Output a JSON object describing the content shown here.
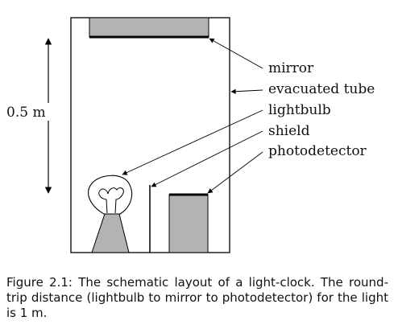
{
  "diagram": {
    "scale_label": "0.5 m",
    "labels": {
      "mirror": "mirror",
      "evacuated_tube": "evacuated tube",
      "lightbulb": "lightbulb",
      "shield": "shield",
      "photodetector": "photodetector"
    },
    "colors": {
      "component_fill": "#b3b3b3",
      "stroke": "#000000",
      "background": "#ffffff"
    }
  },
  "caption": {
    "text": "Figure 2.1: The schematic layout of a light-clock. The round-trip distance (lightbulb to mirror to photodetector) for the light is 1 m."
  }
}
